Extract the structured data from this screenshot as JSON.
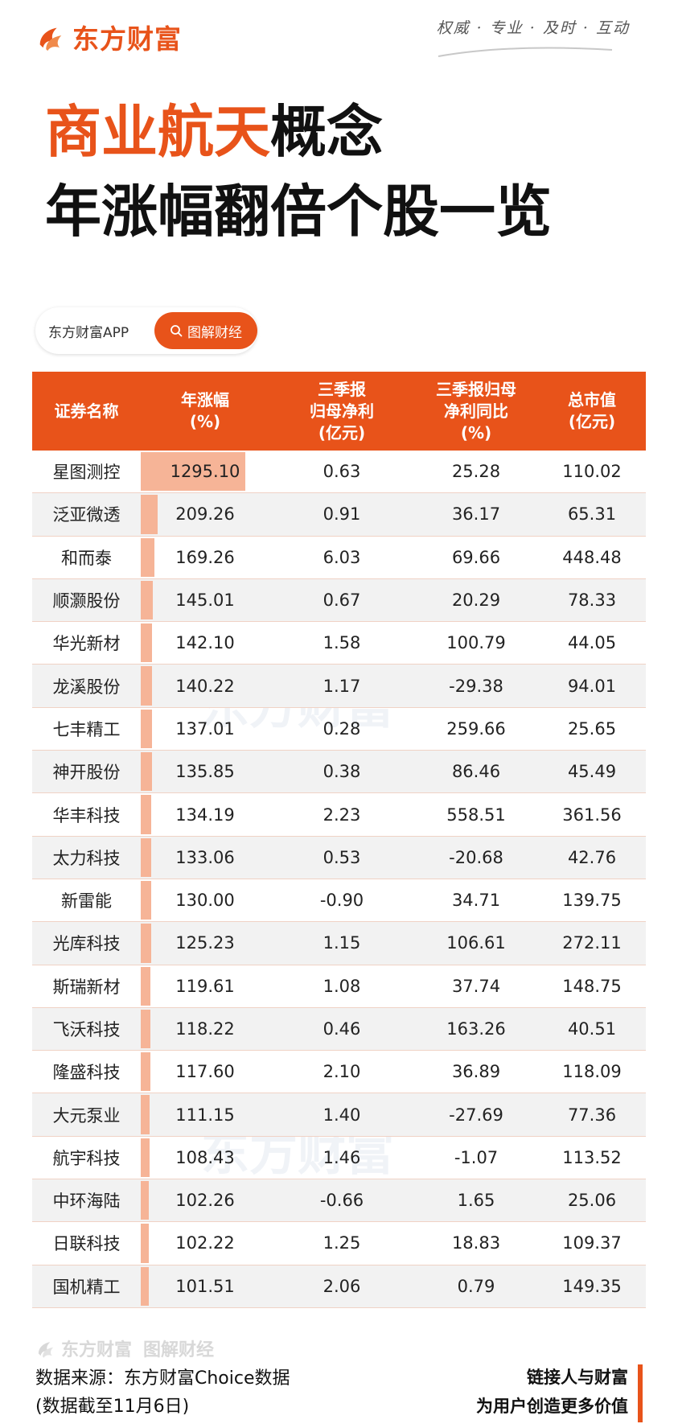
{
  "header": {
    "brand_name": "东方财富",
    "slogan": "权威 · 专业 · 及时 · 互动",
    "accent_color": "#e8531a"
  },
  "title": {
    "highlight": "商业航天",
    "rest": "概念",
    "line2": "年涨幅翻倍个股一览"
  },
  "app_pill": {
    "label": "东方财富APP",
    "button_label": "图解财经",
    "button_icon": "search-icon"
  },
  "table": {
    "headers": [
      "证券名称",
      "年涨幅\n(%)",
      "三季报\n归母净利\n(亿元)",
      "三季报归母\n净利同比\n(%)",
      "总市值\n(亿元)"
    ],
    "rows": [
      {
        "name": "星图测控",
        "gain": "1295.10",
        "profit": "0.63",
        "yoy": "25.28",
        "cap": "110.02",
        "gain_value": 1295.1
      },
      {
        "name": "泛亚微透",
        "gain": "209.26",
        "profit": "0.91",
        "yoy": "36.17",
        "cap": "65.31",
        "gain_value": 209.26
      },
      {
        "name": "和而泰",
        "gain": "169.26",
        "profit": "6.03",
        "yoy": "69.66",
        "cap": "448.48",
        "gain_value": 169.26
      },
      {
        "name": "顺灏股份",
        "gain": "145.01",
        "profit": "0.67",
        "yoy": "20.29",
        "cap": "78.33",
        "gain_value": 145.01
      },
      {
        "name": "华光新材",
        "gain": "142.10",
        "profit": "1.58",
        "yoy": "100.79",
        "cap": "44.05",
        "gain_value": 142.1
      },
      {
        "name": "龙溪股份",
        "gain": "140.22",
        "profit": "1.17",
        "yoy": "-29.38",
        "cap": "94.01",
        "gain_value": 140.22
      },
      {
        "name": "七丰精工",
        "gain": "137.01",
        "profit": "0.28",
        "yoy": "259.66",
        "cap": "25.65",
        "gain_value": 137.01
      },
      {
        "name": "神开股份",
        "gain": "135.85",
        "profit": "0.38",
        "yoy": "86.46",
        "cap": "45.49",
        "gain_value": 135.85
      },
      {
        "name": "华丰科技",
        "gain": "134.19",
        "profit": "2.23",
        "yoy": "558.51",
        "cap": "361.56",
        "gain_value": 134.19
      },
      {
        "name": "太力科技",
        "gain": "133.06",
        "profit": "0.53",
        "yoy": "-20.68",
        "cap": "42.76",
        "gain_value": 133.06
      },
      {
        "name": "新雷能",
        "gain": "130.00",
        "profit": "-0.90",
        "yoy": "34.71",
        "cap": "139.75",
        "gain_value": 130.0
      },
      {
        "name": "光库科技",
        "gain": "125.23",
        "profit": "1.15",
        "yoy": "106.61",
        "cap": "272.11",
        "gain_value": 125.23
      },
      {
        "name": "斯瑞新材",
        "gain": "119.61",
        "profit": "1.08",
        "yoy": "37.74",
        "cap": "148.75",
        "gain_value": 119.61
      },
      {
        "name": "飞沃科技",
        "gain": "118.22",
        "profit": "0.46",
        "yoy": "163.26",
        "cap": "40.51",
        "gain_value": 118.22
      },
      {
        "name": "隆盛科技",
        "gain": "117.60",
        "profit": "2.10",
        "yoy": "36.89",
        "cap": "118.09",
        "gain_value": 117.6
      },
      {
        "name": "大元泵业",
        "gain": "111.15",
        "profit": "1.40",
        "yoy": "-27.69",
        "cap": "77.36",
        "gain_value": 111.15
      },
      {
        "name": "航宇科技",
        "gain": "108.43",
        "profit": "1.46",
        "yoy": "-1.07",
        "cap": "113.52",
        "gain_value": 108.43
      },
      {
        "name": "中环海陆",
        "gain": "102.26",
        "profit": "-0.66",
        "yoy": "1.65",
        "cap": "25.06",
        "gain_value": 102.26
      },
      {
        "name": "日联科技",
        "gain": "102.22",
        "profit": "1.25",
        "yoy": "18.83",
        "cap": "109.37",
        "gain_value": 102.22
      },
      {
        "name": "国机精工",
        "gain": "101.51",
        "profit": "2.06",
        "yoy": "0.79",
        "cap": "149.35",
        "gain_value": 101.51
      }
    ],
    "bar_color": "#f6b497"
  },
  "watermark": {
    "text": "东方财富"
  },
  "footer": {
    "logo_brand": "东方财富",
    "logo_sub": "图解财经",
    "source": "数据来源：东方财富Choice数据",
    "date_note": "(数据截至11月6日)",
    "tagline1": "链接人与财富",
    "tagline2": "为用户创造更多价值"
  }
}
